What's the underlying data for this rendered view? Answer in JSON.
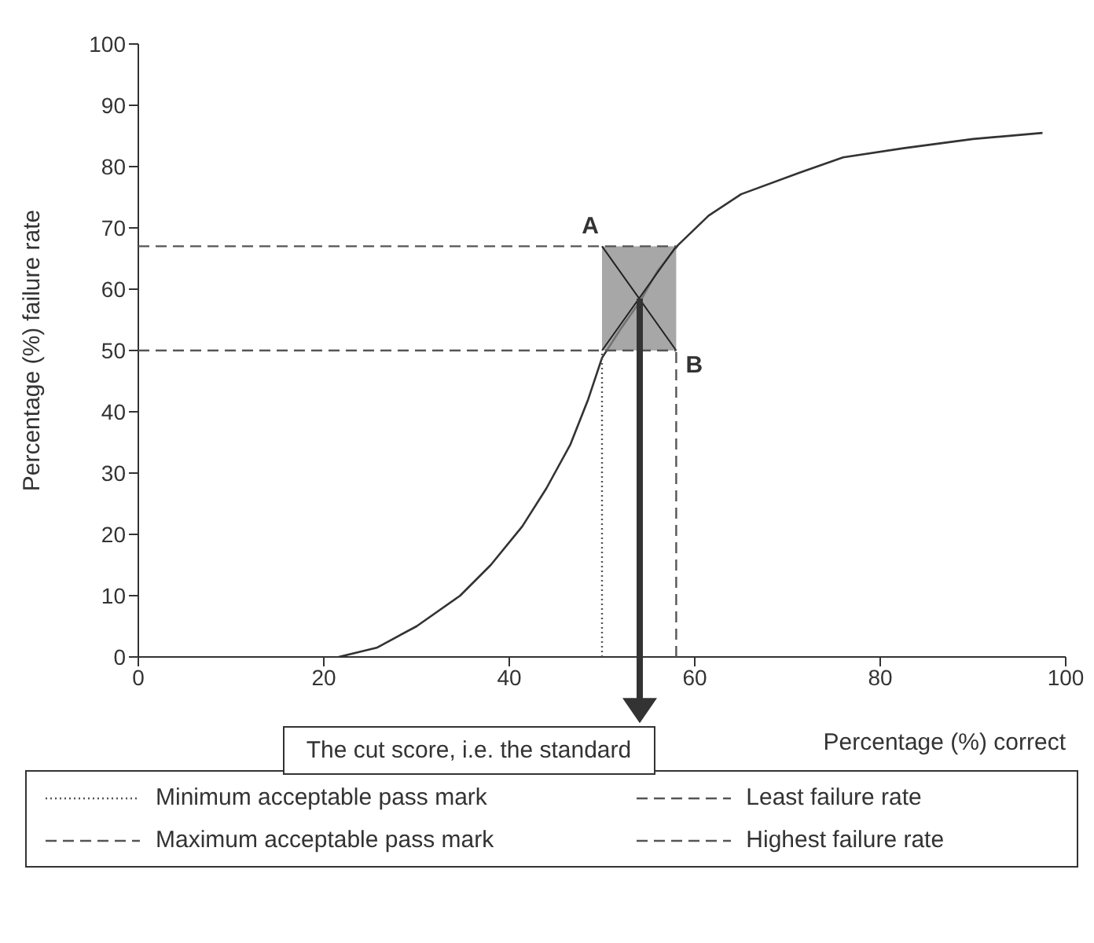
{
  "chart_data": {
    "type": "line",
    "xlabel": "Percentage (%) correct",
    "ylabel": "Percentage (%) failure rate",
    "x": [
      21.6,
      25.7,
      30,
      34.7,
      38,
      41.4,
      44,
      46.6,
      48.5,
      50,
      52,
      54.1,
      56,
      58.2,
      61.5,
      65,
      71.3,
      76,
      82.5,
      90,
      97.5
    ],
    "series": [
      {
        "color": "#333333",
        "values": [
          0,
          1.5,
          5,
          10,
          15,
          21.3,
          27.5,
          34.7,
          42,
          48.8,
          53.5,
          58,
          63,
          67.2,
          72,
          75.5,
          79,
          81.5,
          83,
          84.5,
          85.5
        ]
      }
    ],
    "xlim": [
      0,
      100
    ],
    "xticks": [
      0,
      20,
      40,
      60,
      80,
      100
    ],
    "ylim": [
      0,
      100
    ],
    "yticks": [
      0,
      10,
      20,
      30,
      40,
      50,
      60,
      70,
      80,
      90,
      100
    ],
    "grid": false,
    "marker": "none",
    "line_style": "solid",
    "legend": "bottom",
    "ref_lines": [
      {
        "axis": "x",
        "value": 50,
        "label": "Minimum acceptable pass mark",
        "line_style": "dotted",
        "color": "#555555"
      },
      {
        "axis": "y",
        "value": 50,
        "label": "Least failure rate",
        "line_style": "dashed",
        "color": "#555555"
      },
      {
        "axis": "x",
        "value": 58,
        "label": "Maximum acceptable pass mark",
        "line_style": "dashed",
        "color": "#555555"
      },
      {
        "axis": "y",
        "value": 67,
        "label": "Highest failure rate",
        "line_style": "dashed",
        "color": "#555555"
      }
    ],
    "bands": [
      {
        "axis": "x",
        "from": 50,
        "to": 58,
        "color": "#8a8a8a"
      }
    ],
    "annotations": [
      {
        "text": "A",
        "x": 50,
        "y": 67
      },
      {
        "text": "B",
        "x": 58,
        "y": 50
      },
      "The cut score, i.e. the standard"
    ]
  }
}
